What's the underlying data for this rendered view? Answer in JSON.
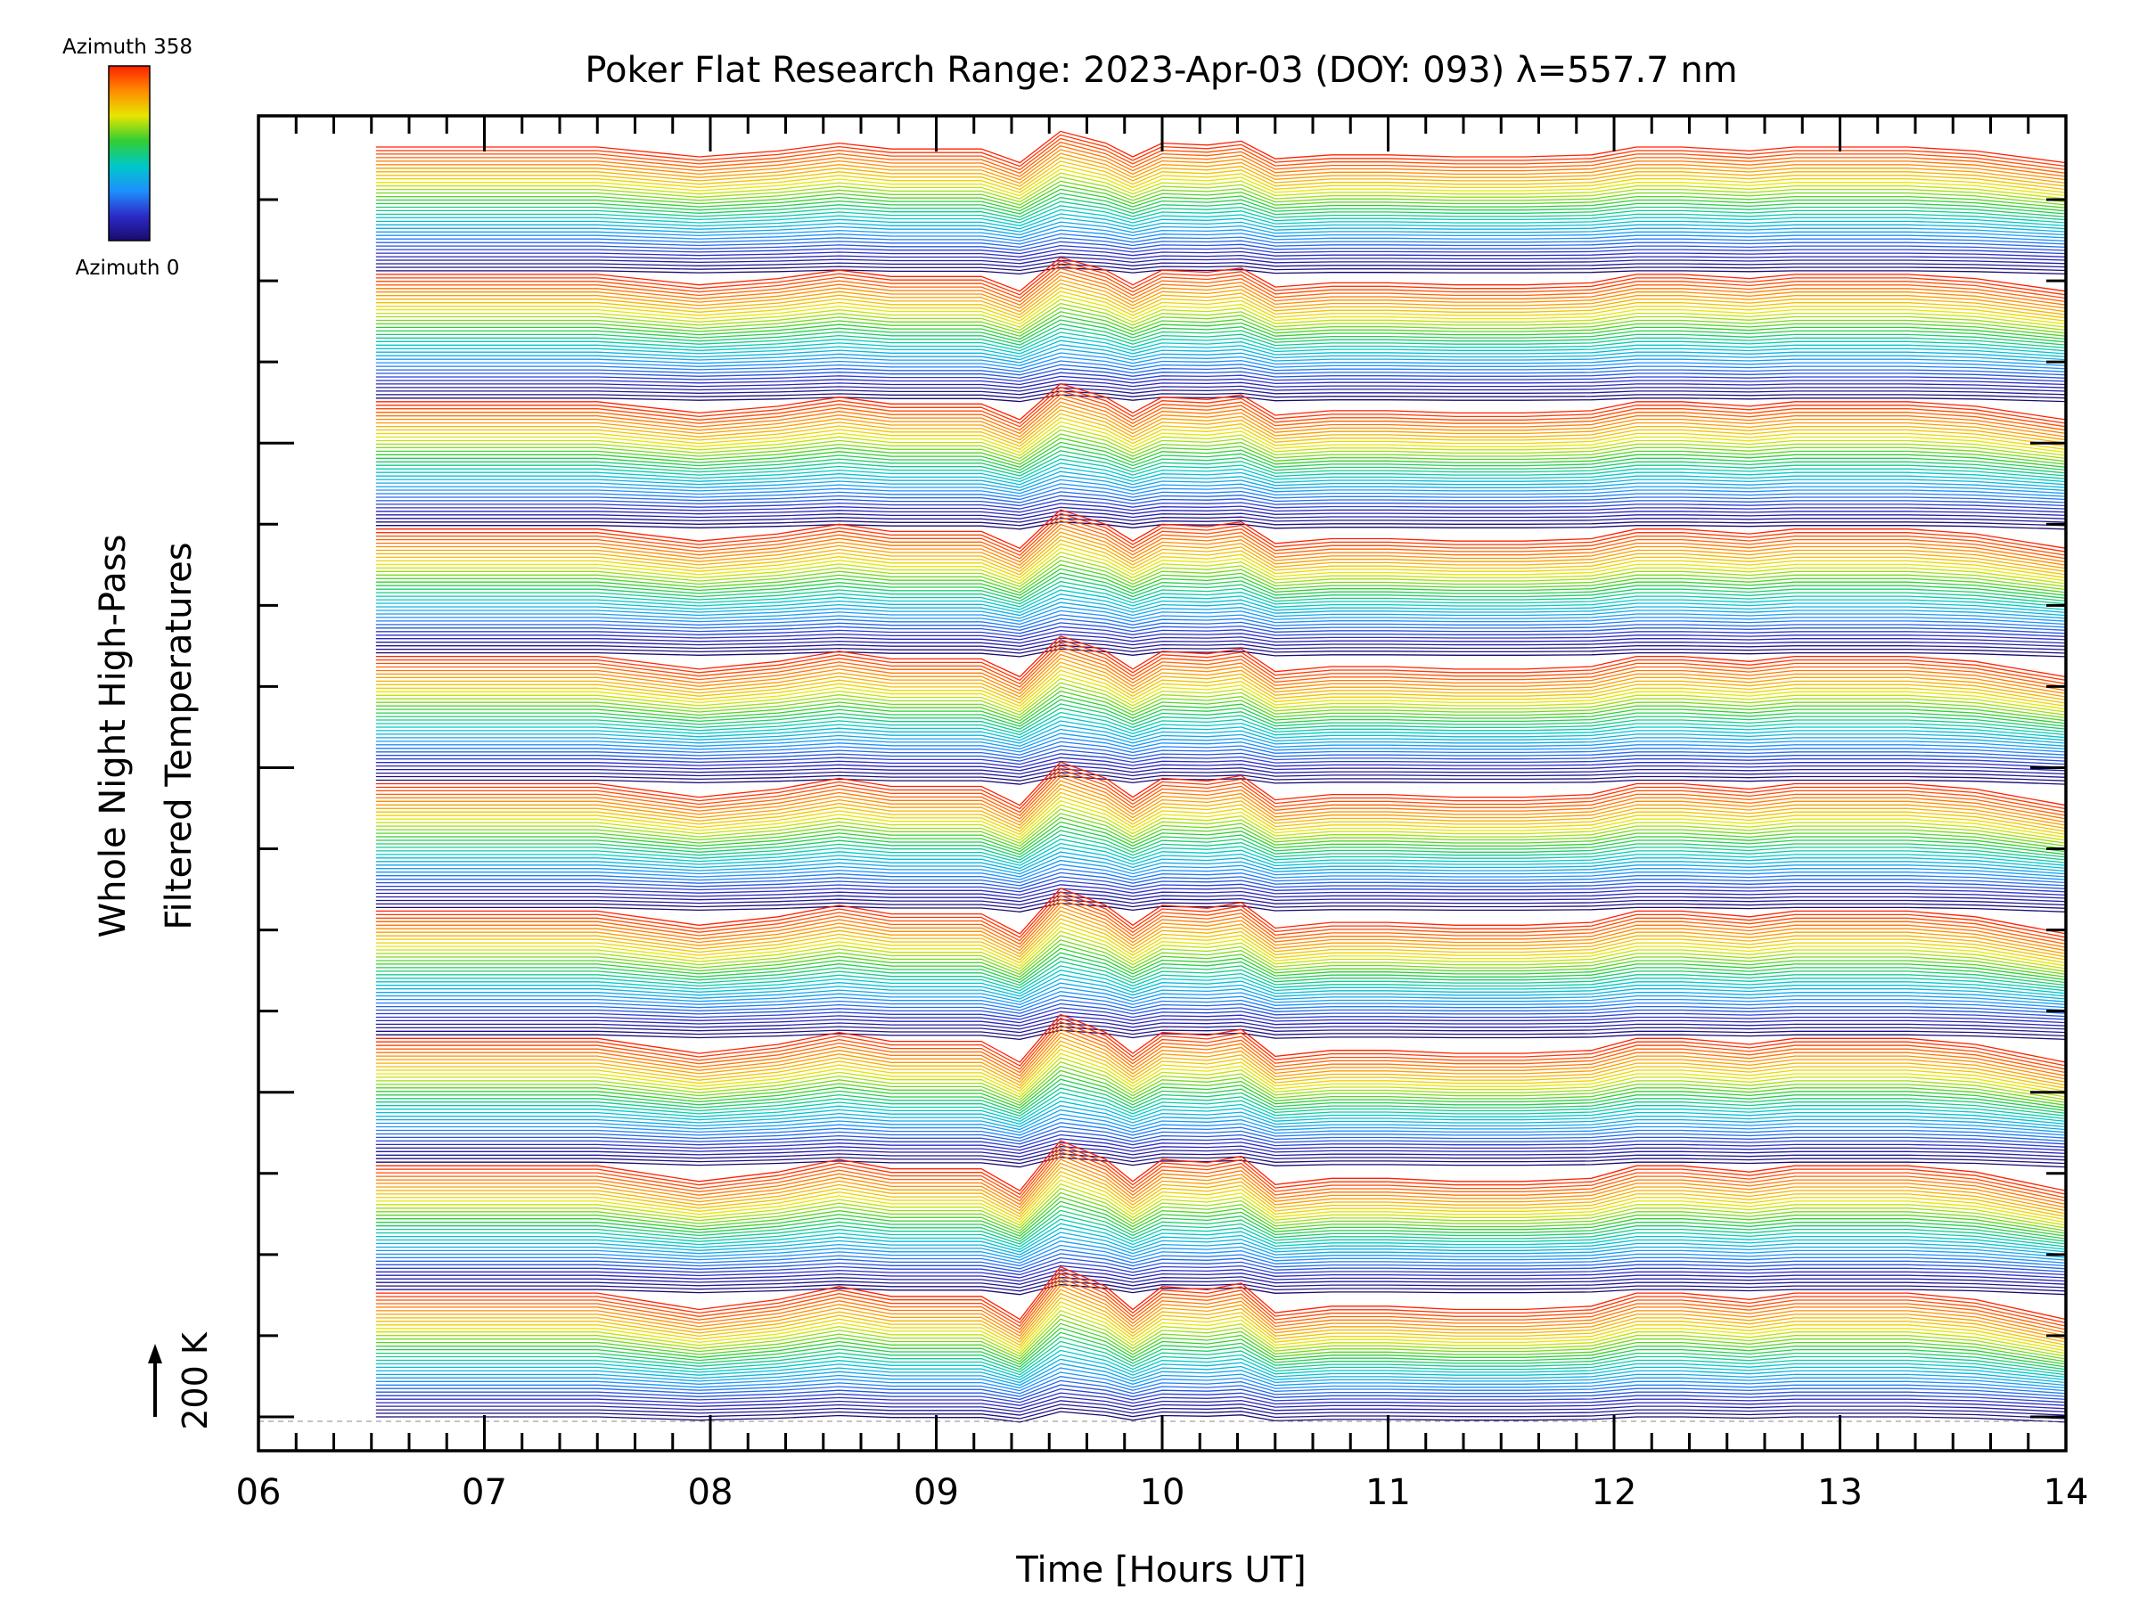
{
  "chart_data": {
    "type": "line",
    "title": "Poker Flat Research Range: 2023-Apr-03 (DOY: 093) λ=557.7 nm",
    "xlabel": "Time [Hours UT]",
    "ylabel_line1": "Whole Night High-Pass",
    "ylabel_line2": "Filtered Temperatures",
    "scale_label": "200 K",
    "x_ticks": [
      "06",
      "07",
      "08",
      "09",
      "10",
      "11",
      "12",
      "13",
      "14"
    ],
    "xlim": [
      6,
      14
    ],
    "x_start": 6.52,
    "colorbar": {
      "top_label": "Azimuth 358",
      "bottom_label": "Azimuth 0",
      "azimuth_range": [
        0,
        358
      ],
      "colors": [
        "#1a0a6e",
        "#2c2cc8",
        "#1e90ff",
        "#00c8c8",
        "#32cd32",
        "#e6e600",
        "#ff8c00",
        "#ff2000"
      ]
    },
    "series_groups": 10,
    "traces_per_group": 36,
    "hour_nodes": [
      6.52,
      7.0,
      7.5,
      7.95,
      8.3,
      8.57,
      8.8,
      9.0,
      9.2,
      9.37,
      9.55,
      9.75,
      9.87,
      10.0,
      10.2,
      10.35,
      10.5,
      10.75,
      11.0,
      11.3,
      11.6,
      11.9,
      12.1,
      12.3,
      12.6,
      12.8,
      13.0,
      13.3,
      13.6,
      14.0
    ],
    "mean_anomaly_K": [
      0,
      0,
      0,
      -25,
      -10,
      10,
      -5,
      -5,
      -5,
      -40,
      40,
      10,
      -25,
      10,
      5,
      15,
      -30,
      -20,
      -20,
      -25,
      -25,
      -20,
      0,
      0,
      -10,
      0,
      0,
      0,
      -10,
      -40
    ]
  }
}
